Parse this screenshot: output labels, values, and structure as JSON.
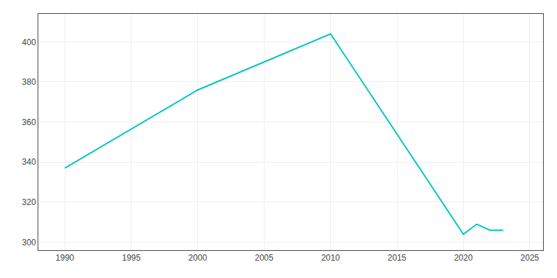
{
  "chart_data": {
    "type": "line",
    "x": [
      1990,
      2000,
      2010,
      2020,
      2021,
      2022,
      2023
    ],
    "values": [
      337,
      376,
      404,
      304,
      309,
      306,
      306
    ],
    "color": "#00C4C4",
    "xlim": [
      1988,
      2026
    ],
    "ylim": [
      296,
      414
    ],
    "xticks": [
      1990,
      1995,
      2000,
      2005,
      2010,
      2015,
      2020,
      2025
    ],
    "yticks": [
      300,
      320,
      340,
      360,
      380,
      400
    ],
    "grid": true
  }
}
